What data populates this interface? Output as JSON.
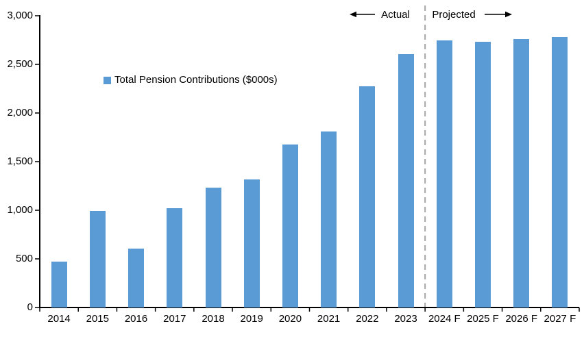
{
  "chart_data": {
    "type": "bar",
    "title": "",
    "legend": "Total Pension Contributions ($000s)",
    "categories": [
      "2014",
      "2015",
      "2016",
      "2017",
      "2018",
      "2019",
      "2020",
      "2021",
      "2022",
      "2023",
      "2024 F",
      "2025 F",
      "2026 F",
      "2027 F"
    ],
    "values": [
      470,
      990,
      605,
      1020,
      1230,
      1320,
      1675,
      1810,
      2275,
      2605,
      2745,
      2735,
      2760,
      2785
    ],
    "xlabel": "",
    "ylabel": "",
    "ylim": [
      0,
      3000
    ],
    "ytick_interval": 500,
    "ytick_labels": [
      "0",
      "500",
      "1,000",
      "1,500",
      "2,000",
      "2,500",
      "3,000"
    ],
    "grid": false,
    "legend_position": "inside-upper-left",
    "bar_color": "#5B9BD5",
    "axis_color": "#000000",
    "divider_color": "#A6A6A6",
    "annotations": {
      "actual_label": "Actual",
      "projected_label": "Projected",
      "divider_after_category": "2023",
      "divider_after_index": 9
    }
  }
}
